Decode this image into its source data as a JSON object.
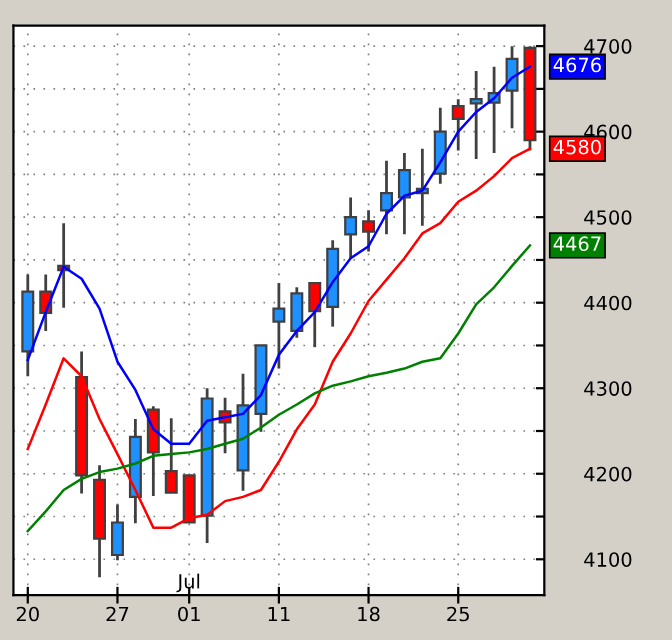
{
  "chart_data": {
    "type": "candlestick",
    "categories": [
      "20",
      null,
      null,
      null,
      null,
      "27",
      null,
      null,
      null,
      "01",
      null,
      null,
      null,
      null,
      "11",
      null,
      null,
      null,
      null,
      "18",
      null,
      null,
      null,
      null,
      "25",
      null,
      null,
      null,
      null
    ],
    "ohlc": [
      [
        4343,
        4433,
        4314,
        4413
      ],
      [
        4413,
        4433,
        4367,
        4388
      ],
      [
        4443,
        4493,
        4394,
        4438
      ],
      [
        4313,
        4343,
        4177,
        4198
      ],
      [
        4193,
        4210,
        4079,
        4124
      ],
      [
        4105,
        4164,
        4099,
        4143
      ],
      [
        4173,
        4264,
        4142,
        4243
      ],
      [
        4275,
        4279,
        4174,
        4225
      ],
      [
        4203,
        4265,
        4178,
        4178
      ],
      [
        4198,
        4198,
        4143,
        4143
      ],
      [
        4151,
        4300,
        4119,
        4288
      ],
      [
        4273,
        4289,
        4224,
        4260
      ],
      [
        4204,
        4317,
        4180,
        4280
      ],
      [
        4270,
        4350,
        4249,
        4350
      ],
      [
        4378,
        4423,
        4323,
        4393
      ],
      [
        4367,
        4418,
        4359,
        4411
      ],
      [
        4423,
        4423,
        4348,
        4390
      ],
      [
        4395,
        4473,
        4372,
        4463
      ],
      [
        4480,
        4523,
        4452,
        4500
      ],
      [
        4495,
        4508,
        4460,
        4483
      ],
      [
        4508,
        4566,
        4480,
        4528
      ],
      [
        4523,
        4575,
        4480,
        4555
      ],
      [
        4528,
        4580,
        4490,
        4533
      ],
      [
        4551,
        4628,
        4539,
        4600
      ],
      [
        4630,
        4638,
        4578,
        4615
      ],
      [
        4633,
        4671,
        4568,
        4638
      ],
      [
        4634,
        4676,
        4575,
        4645
      ],
      [
        4648,
        4700,
        4604,
        4685
      ],
      [
        4698,
        4700,
        4578,
        4590
      ]
    ],
    "colors": [
      "#1e90ff",
      "#ff0000",
      "#ff0000",
      "#ff0000",
      "#ff0000",
      "#1e90ff",
      "#1e90ff",
      "#ff0000",
      "#ff0000",
      "#ff0000",
      "#1e90ff",
      "#ff0000",
      "#1e90ff",
      "#1e90ff",
      "#1e90ff",
      "#1e90ff",
      "#ff0000",
      "#1e90ff",
      "#1e90ff",
      "#ff0000",
      "#1e90ff",
      "#1e90ff",
      "#1e90ff",
      "#1e90ff",
      "#ff0000",
      "#1e90ff",
      "#1e90ff",
      "#1e90ff",
      "#ff0000"
    ],
    "series": [
      {
        "type": "line",
        "color": "#0000ff",
        "values": [
          4333,
          4389,
          4442,
          4428,
          4393,
          4331,
          4298,
          4252,
          4235,
          4235,
          4262,
          4266,
          4270,
          4292,
          4339,
          4367,
          4389,
          4424,
          4452,
          4466,
          4504,
          4525,
          4531,
          4564,
          4600,
          4623,
          4639,
          4663,
          4676
        ],
        "value_labels": [
          null,
          null,
          null,
          null,
          null,
          null,
          null,
          null,
          null,
          null,
          null,
          null,
          null,
          null,
          null,
          null,
          null,
          null,
          null,
          null,
          null,
          null,
          null,
          null,
          null,
          null,
          null,
          null,
          "4676"
        ]
      },
      {
        "type": "line",
        "color": "#ff0000",
        "values": [
          4229,
          4281,
          4335,
          4314,
          4264,
          4223,
          4181,
          4137,
          4137,
          4148,
          4152,
          4168,
          4173,
          4181,
          4214,
          4252,
          4281,
          4331,
          4364,
          4402,
          4427,
          4452,
          4481,
          4493,
          4518,
          4531,
          4548,
          4569,
          4580
        ],
        "value_labels": [
          null,
          null,
          null,
          null,
          null,
          null,
          null,
          null,
          null,
          null,
          null,
          null,
          null,
          null,
          null,
          null,
          null,
          null,
          null,
          null,
          null,
          null,
          null,
          null,
          null,
          null,
          null,
          null,
          "4580"
        ]
      },
      {
        "type": "line",
        "color": "#008000",
        "values": [
          4133,
          4156,
          4181,
          4194,
          4202,
          4206,
          4212,
          4221,
          4223,
          4225,
          4229,
          4235,
          4241,
          4254,
          4269,
          4281,
          4294,
          4303,
          4308,
          4314,
          4318,
          4323,
          4331,
          4335,
          4364,
          4398,
          4418,
          4443,
          4467
        ],
        "value_labels": [
          null,
          null,
          null,
          null,
          null,
          null,
          null,
          null,
          null,
          null,
          null,
          null,
          null,
          null,
          null,
          null,
          null,
          null,
          null,
          null,
          null,
          null,
          null,
          null,
          null,
          null,
          null,
          null,
          "4467"
        ]
      }
    ],
    "annotations": [
      "Jul"
    ],
    "ylim": [
      4058,
      4724
    ],
    "yticks": [
      4100,
      {
        "value": 4150,
        "label": null
      },
      4200,
      {
        "value": 4250,
        "label": null
      },
      4300,
      {
        "value": 4350,
        "label": null
      },
      4400,
      {
        "value": 4450,
        "label": null
      },
      4500,
      {
        "value": 4550,
        "label": null
      },
      4600,
      {
        "value": 4650,
        "label": null
      },
      4700
    ],
    "grid": true
  }
}
